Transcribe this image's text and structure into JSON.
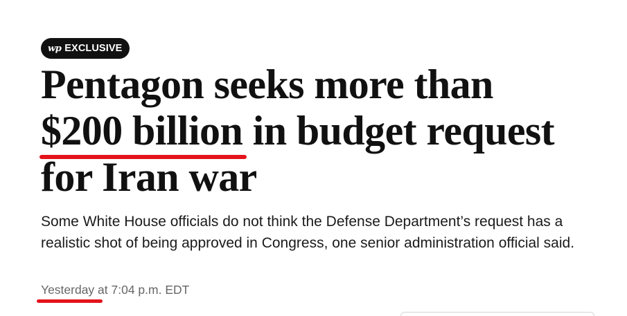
{
  "badge": {
    "logo": "wp",
    "label": "EXCLUSIVE"
  },
  "headline": {
    "line1": "Pentagon seeks more than",
    "line2_highlight": "$200 billion",
    "line2_rest": " in budget request",
    "line3": "for Iran war"
  },
  "dek": "Some White House officials do not think the Defense Department’s request has a realistic shot of being approved in Congress, one senior administration official said.",
  "timestamp": {
    "day": "Yesterday",
    "rest": " at 7:04 p.m. EDT"
  },
  "colors": {
    "annotation_red": "#e4131b",
    "badge_bg": "#111111",
    "headline": "#111111",
    "timestamp": "#666666"
  }
}
